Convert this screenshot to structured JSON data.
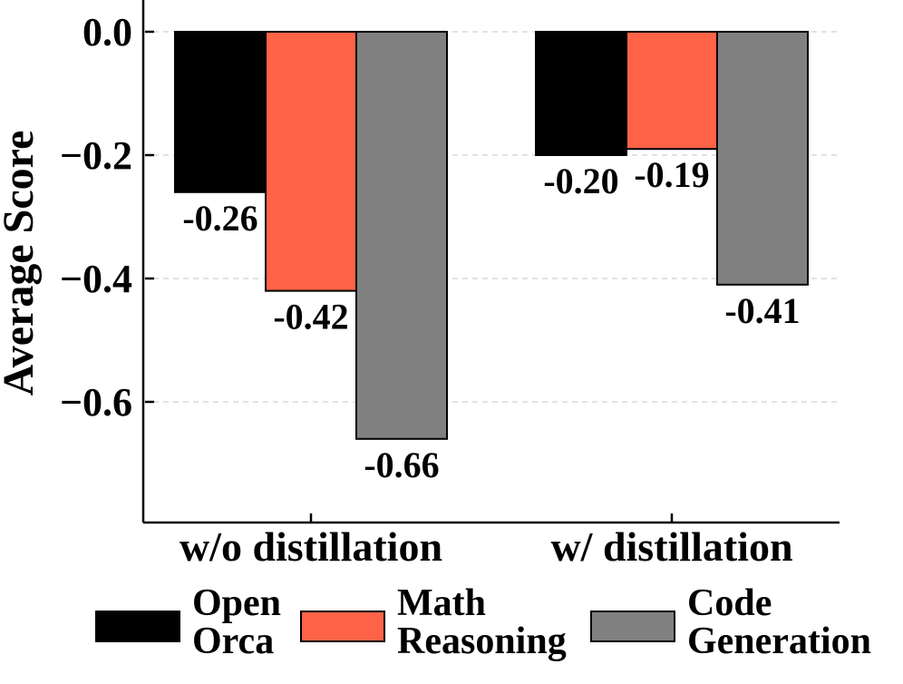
{
  "chart_data": {
    "type": "bar",
    "categories": [
      "w/o distillation",
      "w/ distillation"
    ],
    "series": [
      {
        "name": "Open Orca",
        "label_lines": [
          "Open",
          "Orca"
        ],
        "color": "#000000",
        "values": [
          -0.26,
          -0.2
        ],
        "labels": [
          "-0.26",
          "-0.20"
        ]
      },
      {
        "name": "Math Reasoning",
        "label_lines": [
          "Math",
          "Reasoning"
        ],
        "color": "#ff6347",
        "values": [
          -0.42,
          -0.19
        ],
        "labels": [
          "-0.42",
          "-0.19"
        ]
      },
      {
        "name": "Code Generation",
        "label_lines": [
          "Code",
          "Generation"
        ],
        "color": "#808080",
        "values": [
          -0.66,
          -0.41
        ],
        "labels": [
          "-0.66",
          "-0.41"
        ]
      }
    ],
    "title": "",
    "xlabel": "",
    "ylabel": "Average Score",
    "ylim": [
      -0.79,
      0.05
    ],
    "yticks": [
      0.0,
      -0.2,
      -0.4,
      -0.6
    ],
    "ytick_labels": [
      "0.0",
      "−0.2",
      "−0.4",
      "−0.6"
    ],
    "grid": "horizontal dashed",
    "legend_position": "bottom"
  }
}
